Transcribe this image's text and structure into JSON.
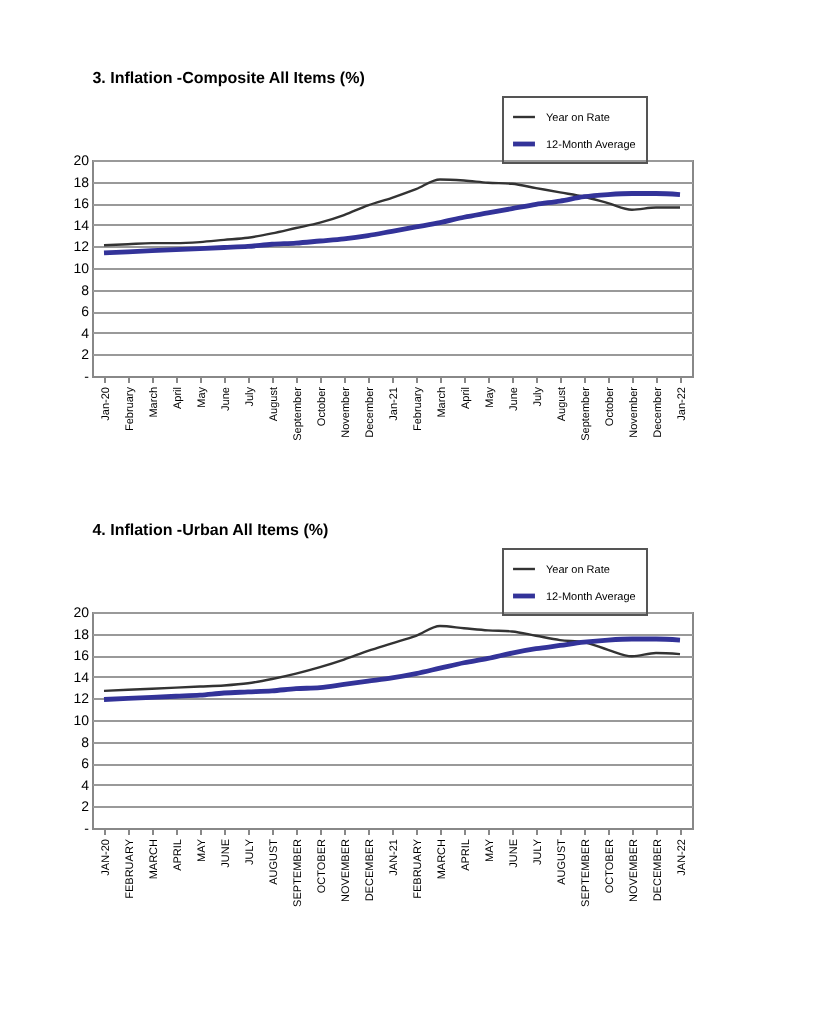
{
  "chart_data": [
    {
      "type": "line",
      "title": "3. Inflation -Composite All Items (%)",
      "categories": [
        "Jan-20",
        "February",
        "March",
        "April",
        "May",
        "June",
        "July",
        "August",
        "September",
        "October",
        "November",
        "December",
        "Jan-21",
        "February",
        "March",
        "April",
        "May",
        "June",
        "July",
        "August",
        "September",
        "October",
        "November",
        "December",
        "Jan-22"
      ],
      "series": [
        {
          "name": "Year on Rate",
          "color": "#333333",
          "values": [
            12.1,
            12.2,
            12.3,
            12.3,
            12.4,
            12.6,
            12.8,
            13.2,
            13.7,
            14.2,
            14.9,
            15.8,
            16.5,
            17.3,
            18.2,
            18.1,
            17.9,
            17.8,
            17.4,
            17.0,
            16.6,
            16.0,
            15.4,
            15.6,
            15.6
          ]
        },
        {
          "name": "12-Month Average",
          "color": "#333399",
          "values": [
            11.4,
            11.5,
            11.6,
            11.7,
            11.8,
            11.9,
            12.0,
            12.2,
            12.3,
            12.5,
            12.7,
            13.0,
            13.4,
            13.8,
            14.2,
            14.7,
            15.1,
            15.5,
            15.9,
            16.2,
            16.6,
            16.8,
            16.9,
            16.9,
            16.8
          ]
        }
      ],
      "ylim": [
        0,
        20
      ],
      "yticks": [
        {
          "value": 0,
          "label": "-"
        },
        2,
        4,
        6,
        8,
        10,
        12,
        14,
        16,
        18,
        20
      ],
      "grid": "y",
      "legend": "top right",
      "marker": "none",
      "line_style": "solid"
    },
    {
      "type": "line",
      "title": "4. Inflation -Urban All Items (%)",
      "categories": [
        "JAN-20",
        "FEBRUARY",
        "MARCH",
        "APRIL",
        "MAY",
        "JUNE",
        "JULY",
        "AUGUST",
        "SEPTEMBER",
        "OCTOBER",
        "NOVEMBER",
        "DECEMBER",
        "JAN-21",
        "FEBRUARY",
        "MARCH",
        "APRIL",
        "MAY",
        "JUNE",
        "JULY",
        "AUGUST",
        "SEPTEMBER",
        "OCTOBER",
        "NOVEMBER",
        "DECEMBER",
        "JAN-22"
      ],
      "series": [
        {
          "name": "Year on Rate",
          "color": "#333333",
          "values": [
            12.7,
            12.8,
            12.9,
            13.0,
            13.1,
            13.2,
            13.4,
            13.8,
            14.3,
            14.9,
            15.6,
            16.4,
            17.1,
            17.8,
            18.7,
            18.5,
            18.3,
            18.2,
            17.8,
            17.4,
            17.2,
            16.5,
            15.9,
            16.2,
            16.1
          ]
        },
        {
          "name": "12-Month Average",
          "color": "#333399",
          "values": [
            11.9,
            12.0,
            12.1,
            12.2,
            12.3,
            12.5,
            12.6,
            12.7,
            12.9,
            13.0,
            13.3,
            13.6,
            13.9,
            14.3,
            14.8,
            15.3,
            15.7,
            16.2,
            16.6,
            16.9,
            17.2,
            17.4,
            17.5,
            17.5,
            17.4
          ]
        }
      ],
      "ylim": [
        0,
        20
      ],
      "yticks": [
        {
          "value": 0,
          "label": "-"
        },
        2,
        4,
        6,
        8,
        10,
        12,
        14,
        16,
        18,
        20
      ],
      "grid": "y",
      "legend": "top right",
      "marker": "none",
      "line_style": "solid"
    }
  ]
}
